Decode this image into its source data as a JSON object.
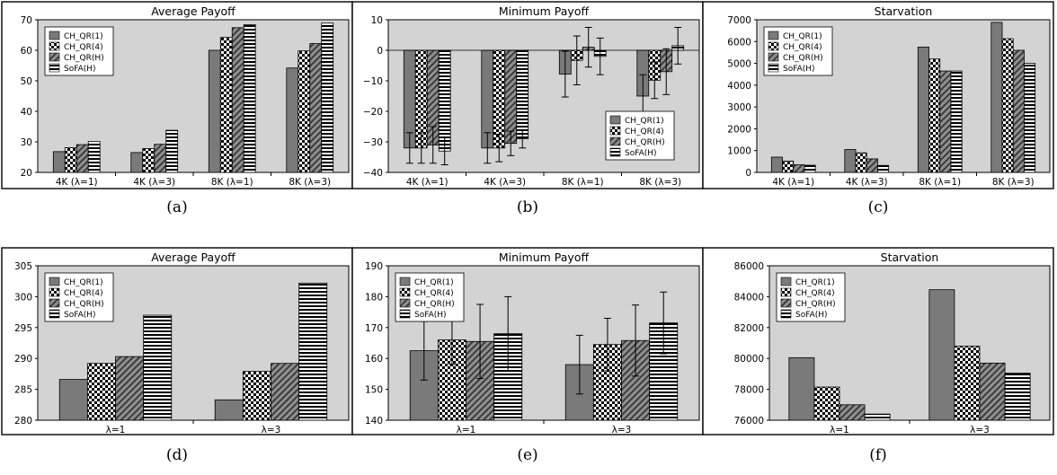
{
  "legend_labels": [
    "CH_QR(1)",
    "CH_QR(4)",
    "CH_QR(H)",
    "SoFA(H)"
  ],
  "colors": {
    "plot_bg": "#d3d3d3",
    "frame": "#000000",
    "bar_fill": "#7a7a7a"
  },
  "chart_data": [
    {
      "type": "bar",
      "caption": "(a)",
      "title": "Average Payoff",
      "categories": [
        "4K (λ=1)",
        "4K (λ=3)",
        "8K (λ=1)",
        "8K (λ=3)"
      ],
      "ylim": [
        20,
        70
      ],
      "yticks": [
        20,
        30,
        40,
        50,
        60,
        70
      ],
      "grid": false,
      "legend_position": "top-left",
      "series": [
        {
          "name": "CH_QR(1)",
          "values": [
            26.8,
            26.5,
            60.0,
            54.2
          ]
        },
        {
          "name": "CH_QR(4)",
          "values": [
            28.1,
            27.8,
            64.2,
            59.8
          ]
        },
        {
          "name": "CH_QR(H)",
          "values": [
            29.1,
            29.2,
            67.4,
            62.2
          ]
        },
        {
          "name": "SoFA(H)",
          "values": [
            30.1,
            33.8,
            68.4,
            68.9
          ]
        }
      ]
    },
    {
      "type": "bar",
      "caption": "(b)",
      "title": "Minimum Payoff",
      "categories": [
        "4K (λ=1)",
        "4K (λ=3)",
        "8K (λ=1)",
        "8K (λ=3)"
      ],
      "ylim": [
        -40,
        10
      ],
      "yticks": [
        -40,
        -30,
        -20,
        -10,
        0,
        10
      ],
      "grid": false,
      "legend_position": "bottom-right",
      "series": [
        {
          "name": "CH_QR(1)",
          "values": [
            -32.0,
            -32.0,
            -7.8,
            -15.0
          ],
          "errors": [
            5.0,
            5.0,
            7.5,
            7.0
          ]
        },
        {
          "name": "CH_QR(4)",
          "values": [
            -32.0,
            -32.0,
            -3.3,
            -9.8
          ],
          "errors": [
            5.0,
            4.5,
            8.0,
            6.0
          ]
        },
        {
          "name": "CH_QR(H)",
          "values": [
            -31.0,
            -30.5,
            1.0,
            -7.0
          ],
          "errors": [
            6.0,
            4.0,
            6.5,
            7.5
          ]
        },
        {
          "name": "SoFA(H)",
          "values": [
            -33.0,
            -29.0,
            -2.0,
            1.5
          ],
          "errors": [
            4.5,
            3.0,
            6.0,
            6.0
          ]
        }
      ]
    },
    {
      "type": "bar",
      "caption": "(c)",
      "title": "Starvation",
      "categories": [
        "4K (λ=1)",
        "4K (λ=3)",
        "8K (λ=1)",
        "8K (λ=3)"
      ],
      "ylim": [
        0,
        7000
      ],
      "yticks": [
        0,
        1000,
        2000,
        3000,
        4000,
        5000,
        6000,
        7000
      ],
      "grid": false,
      "legend_position": "top-left",
      "series": [
        {
          "name": "CH_QR(1)",
          "values": [
            700,
            1050,
            5750,
            6880
          ]
        },
        {
          "name": "CH_QR(4)",
          "values": [
            520,
            900,
            5200,
            6130
          ]
        },
        {
          "name": "CH_QR(H)",
          "values": [
            350,
            620,
            4650,
            5600
          ]
        },
        {
          "name": "SoFA(H)",
          "values": [
            330,
            320,
            4650,
            5000
          ]
        }
      ]
    },
    {
      "type": "bar",
      "caption": "(d)",
      "title": "Average Payoff",
      "categories": [
        "λ=1",
        "λ=3"
      ],
      "ylim": [
        280,
        305
      ],
      "yticks": [
        280,
        285,
        290,
        295,
        300,
        305
      ],
      "grid": false,
      "legend_position": "top-left",
      "series": [
        {
          "name": "CH_QR(1)",
          "values": [
            286.6,
            283.3
          ]
        },
        {
          "name": "CH_QR(4)",
          "values": [
            289.2,
            287.9
          ]
        },
        {
          "name": "CH_QR(H)",
          "values": [
            290.3,
            289.2
          ]
        },
        {
          "name": "SoFA(H)",
          "values": [
            297.0,
            302.2
          ]
        }
      ]
    },
    {
      "type": "bar",
      "caption": "(e)",
      "title": "Minimum Payoff",
      "categories": [
        "λ=1",
        "λ=3"
      ],
      "ylim": [
        140,
        190
      ],
      "yticks": [
        140,
        150,
        160,
        170,
        180,
        190
      ],
      "grid": false,
      "legend_position": "top-left",
      "series": [
        {
          "name": "CH_QR(1)",
          "values": [
            162.5,
            158.0
          ],
          "errors": [
            9.5,
            9.5
          ]
        },
        {
          "name": "CH_QR(4)",
          "values": [
            166.0,
            164.5
          ],
          "errors": [
            8.0,
            8.5
          ]
        },
        {
          "name": "CH_QR(H)",
          "values": [
            165.5,
            165.8
          ],
          "errors": [
            12.0,
            11.5
          ]
        },
        {
          "name": "SoFA(H)",
          "values": [
            168.0,
            171.5
          ],
          "errors": [
            12.0,
            10.0
          ]
        }
      ]
    },
    {
      "type": "bar",
      "caption": "(f)",
      "title": "Starvation",
      "categories": [
        "λ=1",
        "λ=3"
      ],
      "ylim": [
        76000,
        86000
      ],
      "yticks": [
        76000,
        78000,
        80000,
        82000,
        84000,
        86000
      ],
      "grid": false,
      "legend_position": "top-left",
      "series": [
        {
          "name": "CH_QR(1)",
          "values": [
            80050,
            84450
          ]
        },
        {
          "name": "CH_QR(4)",
          "values": [
            78150,
            80800
          ]
        },
        {
          "name": "CH_QR(H)",
          "values": [
            77000,
            79700
          ]
        },
        {
          "name": "SoFA(H)",
          "values": [
            76400,
            79050
          ]
        }
      ]
    }
  ]
}
